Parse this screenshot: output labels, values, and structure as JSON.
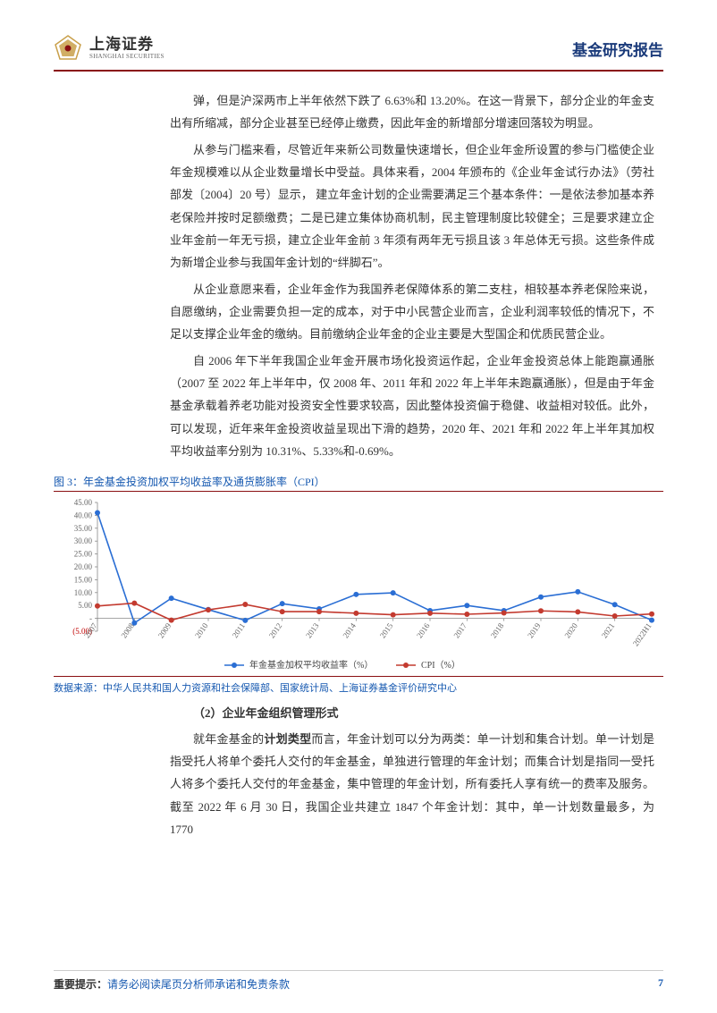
{
  "header": {
    "logo_cn": "上海证券",
    "logo_en": "SHANGHAI SECURITIES",
    "report_type": "基金研究报告"
  },
  "paragraphs": {
    "p1": "弹，但是沪深两市上半年依然下跌了 6.63%和 13.20%。在这一背景下，部分企业的年金支出有所缩减，部分企业甚至已经停止缴费，因此年金的新增部分增速回落较为明显。",
    "p2": "从参与门槛来看，尽管近年来新公司数量快速增长，但企业年金所设置的参与门槛使企业年金规模难以从企业数量增长中受益。具体来看，2004 年颁布的《企业年金试行办法》（劳社部发〔2004〕20 号）显示，  建立年金计划的企业需要满足三个基本条件：一是依法参加基本养老保险并按时足额缴费；二是已建立集体协商机制，民主管理制度比较健全；三是要求建立企业年金前一年无亏损，建立企业年金前 3 年须有两年无亏损且该 3 年总体无亏损。这些条件成为新增企业参与我国年金计划的“绊脚石”。",
    "p3": "从企业意愿来看，企业年金作为我国养老保障体系的第二支柱，相较基本养老保险来说，自愿缴纳，企业需要负担一定的成本，对于中小民营企业而言，企业利润率较低的情况下，不足以支撑企业年金的缴纳。目前缴纳企业年金的企业主要是大型国企和优质民营企业。",
    "p4": "自 2006 年下半年我国企业年金开展市场化投资运作起，企业年金投资总体上能跑赢通胀（2007 至 2022 年上半年中，仅 2008 年、2011 年和 2022 年上半年未跑赢通胀），但是由于年金基金承载着养老功能对投资安全性要求较高，因此整体投资偏于稳健、收益相对较低。此外，可以发现，近年来年金投资收益呈现出下滑的趋势，2020 年、2021 年和 2022 年上半年其加权平均收益率分别为 10.31%、5.33%和-0.69%。",
    "p5_prefix": "就年金基金的",
    "p5_bold": "计划类型",
    "p5_suffix": "而言，年金计划可以分为两类：单一计划和集合计划。单一计划是指受托人将单个委托人交付的年金基金，单独进行管理的年金计划；而集合计划是指同一受托人将多个委托人交付的年金基金，集中管理的年金计划，所有委托人享有统一的费率及服务。截至 2022 年 6 月 30 日，我国企业共建立 1847 个年金计划：其中，单一计划数量最多，为 1770"
  },
  "chart": {
    "title": "图 3：年金基金投资加权平均收益率及通货膨胀率（CPI）",
    "type": "line",
    "x_labels": [
      "2007",
      "2008",
      "2009",
      "2010",
      "2011",
      "2012",
      "2013",
      "2014",
      "2015",
      "2016",
      "2017",
      "2018",
      "2019",
      "2020",
      "2021",
      "2022H1"
    ],
    "series": [
      {
        "name": "年金基金加权平均收益率（%）",
        "color": "#2a6ed4",
        "values": [
          41.0,
          -1.8,
          7.8,
          3.4,
          -0.8,
          5.7,
          3.7,
          9.3,
          9.9,
          3.0,
          5.0,
          3.0,
          8.3,
          10.31,
          5.33,
          -0.69
        ]
      },
      {
        "name": "CPI（%）",
        "color": "#c33a2f",
        "values": [
          4.8,
          5.9,
          -0.7,
          3.3,
          5.4,
          2.6,
          2.6,
          2.0,
          1.4,
          2.0,
          1.6,
          2.1,
          2.9,
          2.5,
          0.9,
          1.7
        ]
      }
    ],
    "ylim": [
      -5,
      45
    ],
    "ytick_step": 5,
    "ytick_labels": [
      "(5.00)",
      "-",
      "5.00",
      "10.00",
      "15.00",
      "20.00",
      "25.00",
      "30.00",
      "35.00",
      "40.00",
      "45.00"
    ],
    "neg_label_color": "#c00000",
    "marker": "circle",
    "marker_size": 3,
    "line_width": 1.6,
    "background_color": "#ffffff",
    "axis_color": "#888888",
    "label_color": "#666666",
    "label_fontsize": 9
  },
  "data_source": "数据来源：中华人民共和国人力资源和社会保障部、国家统计局、上海证券基金评价研究中心",
  "subsection": "（2）企业年金组织管理形式",
  "footer": {
    "label": "重要提示：",
    "text": "请务必阅读尾页分析师承诺和免责条款",
    "page": "7"
  },
  "colors": {
    "brand_red": "#8a0f12",
    "link_blue": "#1558b0",
    "header_blue": "#1a3a7a",
    "logo_gold": "#c9a04a"
  }
}
